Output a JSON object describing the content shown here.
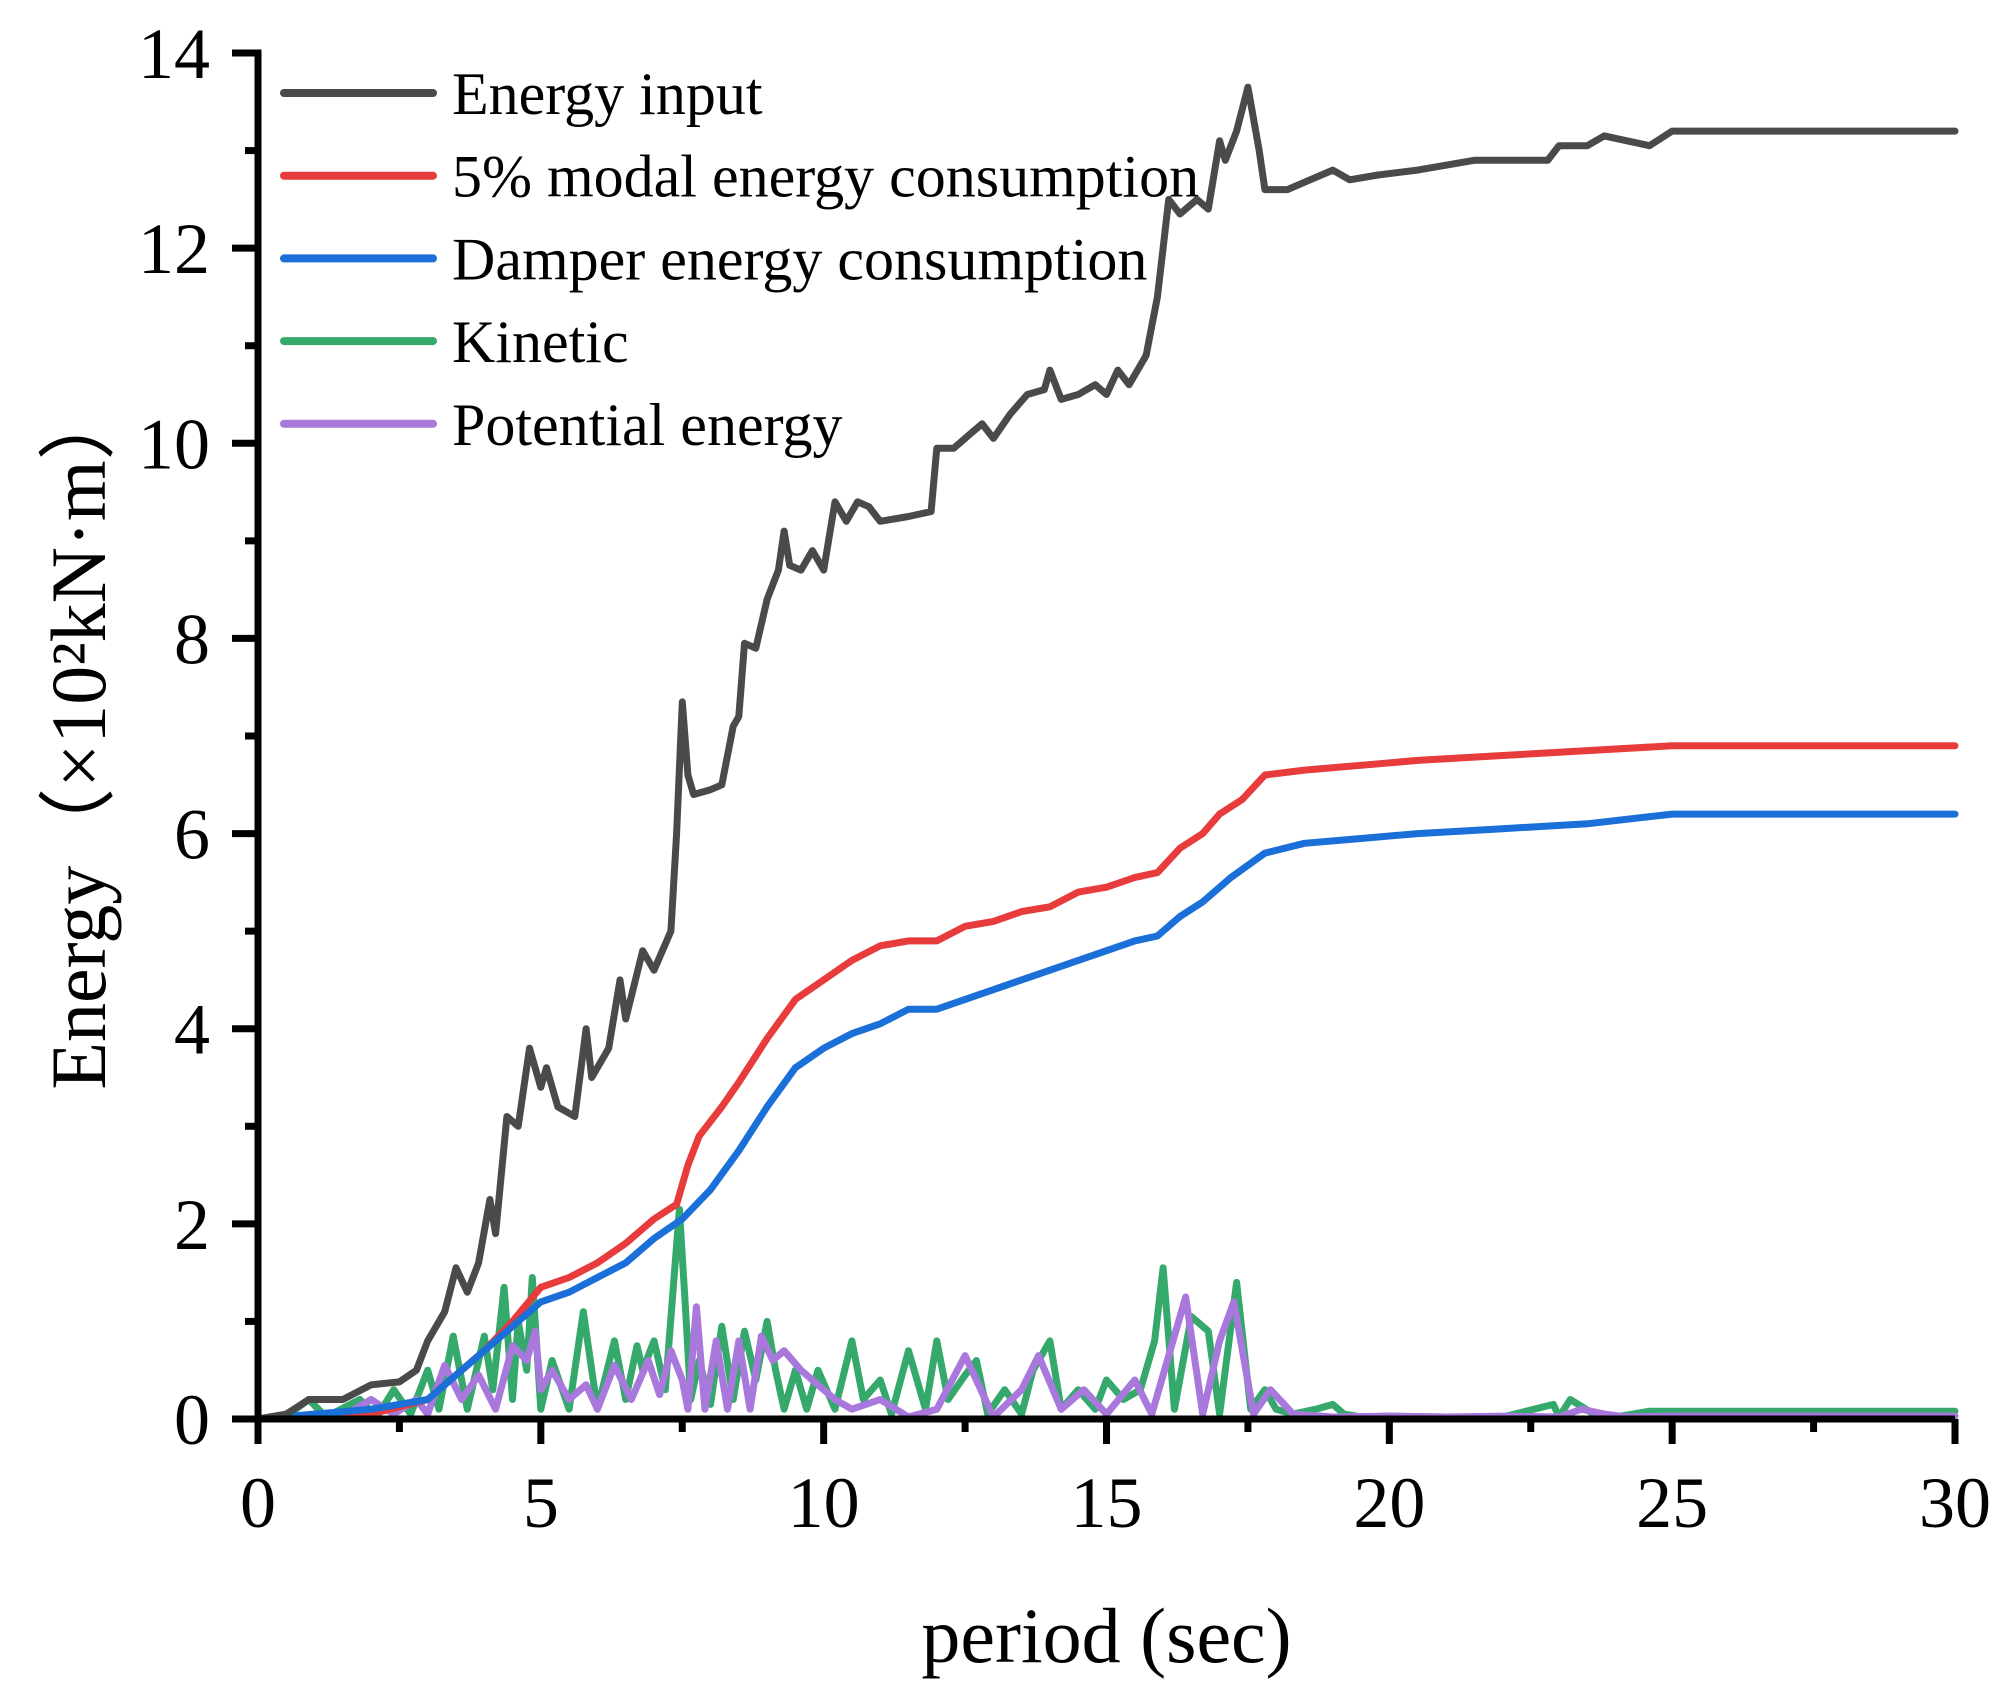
{
  "chart_data": {
    "type": "line",
    "title": "",
    "xlabel": "period (sec)",
    "ylabel": "Energy（×10²kN·m）",
    "xlim": [
      0,
      30
    ],
    "ylim": [
      0,
      14
    ],
    "x_ticks": [
      0,
      5,
      10,
      15,
      20,
      25,
      30
    ],
    "x_tick_labels": [
      "0",
      "5",
      "10",
      "15",
      "20",
      "25",
      "30"
    ],
    "x_minor_ticks": [
      2.5,
      7.5,
      12.5,
      17.5,
      22.5,
      27.5
    ],
    "y_ticks": [
      0,
      2,
      4,
      6,
      8,
      10,
      12,
      14
    ],
    "y_tick_labels": [
      "0",
      "2",
      "4",
      "6",
      "8",
      "10",
      "12",
      "14"
    ],
    "y_minor_ticks": [
      1,
      3,
      5,
      7,
      9,
      11,
      13
    ],
    "grid": false,
    "legend_position": "top-left",
    "series": [
      {
        "name": "Energy input",
        "color": "#4a4a4a",
        "x": [
          0,
          0.5,
          0.9,
          1.5,
          2.0,
          2.5,
          2.8,
          3.0,
          3.3,
          3.5,
          3.7,
          3.9,
          4.1,
          4.2,
          4.4,
          4.6,
          4.8,
          5.0,
          5.1,
          5.3,
          5.6,
          5.8,
          5.9,
          6.2,
          6.4,
          6.5,
          6.8,
          7.0,
          7.3,
          7.4,
          7.5,
          7.6,
          7.7,
          8.0,
          8.2,
          8.4,
          8.5,
          8.6,
          8.8,
          9.0,
          9.2,
          9.3,
          9.4,
          9.6,
          9.8,
          10.0,
          10.2,
          10.4,
          10.6,
          10.8,
          11.0,
          11.5,
          11.9,
          12.0,
          12.3,
          12.6,
          12.8,
          13.0,
          13.3,
          13.6,
          13.9,
          14.0,
          14.2,
          14.5,
          14.8,
          15.0,
          15.2,
          15.4,
          15.7,
          15.9,
          16.0,
          16.1,
          16.3,
          16.6,
          16.8,
          17.0,
          17.1,
          17.3,
          17.5,
          17.7,
          17.8,
          18.2,
          18.6,
          19.0,
          19.3,
          19.8,
          20.5,
          21.5,
          22.0,
          22.8,
          23.0,
          23.5,
          23.8,
          24.2,
          24.6,
          25.0,
          30.0
        ],
        "y": [
          0,
          0.05,
          0.2,
          0.2,
          0.35,
          0.38,
          0.5,
          0.8,
          1.1,
          1.55,
          1.3,
          1.6,
          2.25,
          1.9,
          3.1,
          3.0,
          3.8,
          3.4,
          3.6,
          3.2,
          3.1,
          4.0,
          3.5,
          3.8,
          4.5,
          4.1,
          4.8,
          4.6,
          5.0,
          6.0,
          7.35,
          6.6,
          6.4,
          6.45,
          6.5,
          7.1,
          7.2,
          7.95,
          7.9,
          8.4,
          8.7,
          9.1,
          8.75,
          8.7,
          8.9,
          8.7,
          9.4,
          9.2,
          9.4,
          9.35,
          9.2,
          9.25,
          9.3,
          9.95,
          9.95,
          10.1,
          10.2,
          10.05,
          10.3,
          10.5,
          10.55,
          10.75,
          10.45,
          10.5,
          10.6,
          10.5,
          10.75,
          10.6,
          10.9,
          11.5,
          12.0,
          12.5,
          12.35,
          12.5,
          12.4,
          13.1,
          12.9,
          13.2,
          13.65,
          13.0,
          12.6,
          12.6,
          12.7,
          12.8,
          12.7,
          12.75,
          12.8,
          12.9,
          12.9,
          12.9,
          13.05,
          13.05,
          13.15,
          13.1,
          13.05,
          13.2,
          13.2
        ]
      },
      {
        "name": "5% modal energy consumption",
        "color": "#e83b3b",
        "x": [
          0,
          2,
          3,
          4,
          4.5,
          5,
          5.5,
          6,
          6.5,
          7,
          7.4,
          7.6,
          7.8,
          8.2,
          8.5,
          9,
          9.5,
          10,
          10.5,
          11,
          11.5,
          12,
          12.5,
          13,
          13.5,
          14,
          14.5,
          15,
          15.5,
          15.9,
          16.3,
          16.7,
          17,
          17.4,
          17.8,
          18.5,
          19.5,
          20.5,
          22,
          23.5,
          25,
          30
        ],
        "y": [
          0,
          0.05,
          0.2,
          0.7,
          1.0,
          1.35,
          1.45,
          1.6,
          1.8,
          2.05,
          2.2,
          2.6,
          2.9,
          3.2,
          3.45,
          3.9,
          4.3,
          4.5,
          4.7,
          4.85,
          4.9,
          4.9,
          5.05,
          5.1,
          5.2,
          5.25,
          5.4,
          5.45,
          5.55,
          5.6,
          5.85,
          6.0,
          6.2,
          6.35,
          6.6,
          6.65,
          6.7,
          6.75,
          6.8,
          6.85,
          6.9,
          6.9
        ]
      },
      {
        "name": "Damper energy consumption",
        "color": "#1a6fd8",
        "x": [
          0,
          2,
          3,
          4,
          4.5,
          5,
          5.5,
          6,
          6.5,
          7,
          7.5,
          8,
          8.5,
          9,
          9.5,
          10,
          10.5,
          11,
          11.5,
          12,
          12.5,
          13,
          13.5,
          14,
          14.5,
          15,
          15.5,
          15.9,
          16.3,
          16.7,
          17.2,
          17.8,
          18.5,
          19.5,
          20.5,
          22,
          23.5,
          25,
          30
        ],
        "y": [
          0,
          0.1,
          0.2,
          0.7,
          0.95,
          1.2,
          1.3,
          1.45,
          1.6,
          1.85,
          2.05,
          2.35,
          2.75,
          3.2,
          3.6,
          3.8,
          3.95,
          4.05,
          4.2,
          4.2,
          4.3,
          4.4,
          4.5,
          4.6,
          4.7,
          4.8,
          4.9,
          4.95,
          5.15,
          5.3,
          5.55,
          5.8,
          5.9,
          5.95,
          6.0,
          6.05,
          6.1,
          6.2,
          6.2
        ]
      },
      {
        "name": "Kinetic",
        "color": "#35a86b",
        "x": [
          0,
          0.5,
          0.9,
          1.2,
          1.8,
          2.1,
          2.4,
          2.7,
          3.0,
          3.2,
          3.45,
          3.7,
          4.0,
          4.15,
          4.35,
          4.5,
          4.6,
          4.75,
          4.85,
          5.0,
          5.2,
          5.5,
          5.75,
          6.0,
          6.3,
          6.5,
          6.7,
          6.8,
          7.0,
          7.2,
          7.45,
          7.55,
          7.65,
          7.8,
          8.0,
          8.2,
          8.4,
          8.6,
          8.8,
          9.0,
          9.15,
          9.3,
          9.5,
          9.7,
          9.9,
          10.2,
          10.5,
          10.7,
          11.0,
          11.2,
          11.5,
          11.8,
          12.0,
          12.2,
          12.5,
          12.7,
          12.9,
          13.2,
          13.5,
          13.7,
          14.0,
          14.2,
          14.5,
          14.8,
          15.0,
          15.3,
          15.6,
          15.85,
          16.0,
          16.2,
          16.5,
          16.8,
          17.0,
          17.3,
          17.55,
          17.8,
          18.0,
          18.3,
          18.7,
          19.0,
          19.2,
          19.5,
          20.0,
          21.0,
          22.0,
          22.9,
          23.0,
          23.2,
          23.7,
          23.8,
          24.0,
          24.6,
          25.0,
          30.0
        ],
        "y": [
          0,
          0.03,
          0.2,
          0.02,
          0.2,
          0.02,
          0.3,
          0.05,
          0.5,
          0.1,
          0.85,
          0.1,
          0.85,
          0.3,
          1.35,
          0.2,
          1.0,
          0.5,
          1.45,
          0.1,
          0.6,
          0.1,
          1.1,
          0.1,
          0.8,
          0.2,
          0.75,
          0.5,
          0.8,
          0.3,
          2.15,
          1.2,
          0.2,
          0.6,
          0.15,
          0.95,
          0.2,
          0.9,
          0.4,
          1.0,
          0.5,
          0.1,
          0.5,
          0.1,
          0.5,
          0.1,
          0.8,
          0.2,
          0.4,
          0.05,
          0.7,
          0.1,
          0.8,
          0.2,
          0.45,
          0.6,
          0.05,
          0.3,
          0.05,
          0.5,
          0.8,
          0.1,
          0.3,
          0.1,
          0.4,
          0.2,
          0.3,
          0.8,
          1.55,
          0.1,
          1.05,
          0.9,
          0.05,
          1.4,
          0.1,
          0.3,
          0.1,
          0.05,
          0.1,
          0.15,
          0.05,
          0.02,
          0.03,
          0.02,
          0.02,
          0.15,
          0.02,
          0.2,
          0.02,
          0.05,
          0.02,
          0.08,
          0.08,
          0.08
        ]
      },
      {
        "name": "Potential energy",
        "color": "#a878dc",
        "x": [
          0,
          0.5,
          1.0,
          1.5,
          2.0,
          2.4,
          2.8,
          3.0,
          3.3,
          3.6,
          3.9,
          4.2,
          4.5,
          4.75,
          4.9,
          5.0,
          5.2,
          5.5,
          5.8,
          6.0,
          6.3,
          6.6,
          6.9,
          7.1,
          7.3,
          7.5,
          7.6,
          7.75,
          7.9,
          8.1,
          8.3,
          8.5,
          8.7,
          8.9,
          9.1,
          9.3,
          9.6,
          9.9,
          10.2,
          10.5,
          11.0,
          11.5,
          12.0,
          12.5,
          13.0,
          13.5,
          13.8,
          14.2,
          14.6,
          15.0,
          15.5,
          15.8,
          16.1,
          16.4,
          16.7,
          17.0,
          17.25,
          17.6,
          17.9,
          18.3,
          19.0,
          20.0,
          21.0,
          22.0,
          23.0,
          23.4,
          23.8,
          24.2,
          25.0,
          30.0
        ],
        "y": [
          0,
          0.02,
          0.05,
          0.03,
          0.2,
          0.05,
          0.2,
          0.05,
          0.55,
          0.2,
          0.45,
          0.1,
          0.75,
          0.6,
          0.9,
          0.3,
          0.5,
          0.2,
          0.35,
          0.1,
          0.55,
          0.2,
          0.6,
          0.25,
          0.7,
          0.4,
          0.1,
          1.15,
          0.1,
          0.8,
          0.1,
          0.8,
          0.1,
          0.85,
          0.6,
          0.7,
          0.5,
          0.35,
          0.2,
          0.1,
          0.2,
          0.02,
          0.1,
          0.65,
          0.02,
          0.3,
          0.65,
          0.1,
          0.3,
          0.05,
          0.4,
          0.05,
          0.65,
          1.25,
          0.05,
          0.8,
          1.2,
          0.05,
          0.3,
          0.05,
          0.02,
          0.03,
          0.02,
          0.03,
          0.02,
          0.1,
          0.05,
          0.02,
          0.03,
          0.03
        ]
      }
    ]
  }
}
